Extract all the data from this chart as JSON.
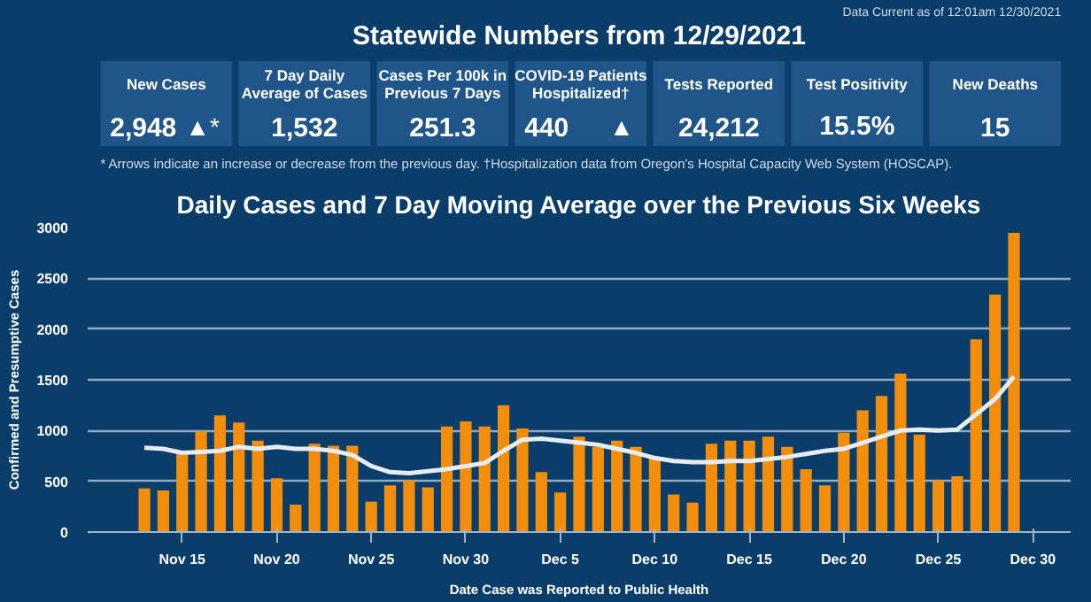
{
  "chart_data": [
    {
      "type": "other",
      "title": "Statewide Numbers from 12/29/2021",
      "subtitle": "Data Current as of 12:01am 12/30/2021",
      "categories": [
        "New Cases",
        "7 Day Daily Average of Cases",
        "Cases Per 100k in Previous 7 Days",
        "COVID-19 Patients Hospitalized†",
        "Tests Reported",
        "Test Positivity",
        "New Deaths"
      ],
      "value_labels": [
        "2,948 ▲*",
        "1,532",
        "251.3",
        "440 ▲",
        "24,212",
        "15.5%",
        "15"
      ],
      "annotations": [
        "* Arrows indicate an increase or decrease from the previous day. †Hospitalization data from Oregon's Hospital Capacity Web System (HOSCAP)."
      ]
    },
    {
      "type": "bar",
      "title": "Daily Cases and 7 Day Moving Average over the Previous Six Weeks",
      "xlabel": "Date Case was Reported to Public Health",
      "ylabel": "Confirmed and Presumptive Cases",
      "x": [
        "2021-11-13",
        "2021-11-14",
        "2021-11-15",
        "2021-11-16",
        "2021-11-17",
        "2021-11-18",
        "2021-11-19",
        "2021-11-20",
        "2021-11-21",
        "2021-11-22",
        "2021-11-23",
        "2021-11-24",
        "2021-11-25",
        "2021-11-26",
        "2021-11-27",
        "2021-11-28",
        "2021-11-29",
        "2021-11-30",
        "2021-12-01",
        "2021-12-02",
        "2021-12-03",
        "2021-12-04",
        "2021-12-05",
        "2021-12-06",
        "2021-12-07",
        "2021-12-08",
        "2021-12-09",
        "2021-12-10",
        "2021-12-11",
        "2021-12-12",
        "2021-12-13",
        "2021-12-14",
        "2021-12-15",
        "2021-12-16",
        "2021-12-17",
        "2021-12-18",
        "2021-12-19",
        "2021-12-20",
        "2021-12-21",
        "2021-12-22",
        "2021-12-23",
        "2021-12-24",
        "2021-12-25",
        "2021-12-26",
        "2021-12-27",
        "2021-12-28",
        "2021-12-29"
      ],
      "series": [
        {
          "type": "bar",
          "color": "#f28e0c",
          "values": [
            430,
            410,
            780,
            990,
            1150,
            1080,
            900,
            530,
            270,
            870,
            850,
            850,
            300,
            460,
            510,
            440,
            1040,
            1090,
            1040,
            1250,
            1020,
            590,
            390,
            940,
            840,
            900,
            840,
            740,
            370,
            290,
            870,
            900,
            900,
            940,
            840,
            620,
            460,
            980,
            1200,
            1340,
            1560,
            960,
            510,
            550,
            1900,
            2340,
            2948
          ]
        },
        {
          "type": "line",
          "color": "#e6edf2",
          "values": [
            830,
            820,
            780,
            790,
            800,
            840,
            820,
            840,
            820,
            820,
            800,
            760,
            650,
            590,
            580,
            600,
            620,
            650,
            680,
            800,
            910,
            920,
            900,
            880,
            860,
            820,
            780,
            730,
            700,
            690,
            690,
            700,
            700,
            720,
            740,
            770,
            800,
            820,
            880,
            940,
            1000,
            1010,
            1000,
            1010,
            1160,
            1310,
            1532
          ]
        }
      ],
      "xlim": [
        "2021-11-10",
        "2022-01-01"
      ],
      "xticks": [
        {
          "value": "2021-11-15",
          "label": "Nov 15"
        },
        {
          "value": "2021-11-20",
          "label": "Nov 20"
        },
        {
          "value": "2021-11-25",
          "label": "Nov 25"
        },
        {
          "value": "2021-11-30",
          "label": "Nov 30"
        },
        {
          "value": "2021-12-05",
          "label": "Dec 5"
        },
        {
          "value": "2021-12-10",
          "label": "Dec 10"
        },
        {
          "value": "2021-12-15",
          "label": "Dec 15"
        },
        {
          "value": "2021-12-20",
          "label": "Dec 20"
        },
        {
          "value": "2021-12-25",
          "label": "Dec 25"
        },
        {
          "value": "2021-12-30",
          "label": "Dec 30"
        }
      ],
      "ylim": [
        0,
        3000
      ],
      "yticks": [
        0,
        500,
        1000,
        1500,
        2000,
        2500,
        3000
      ],
      "grid": "y"
    }
  ]
}
